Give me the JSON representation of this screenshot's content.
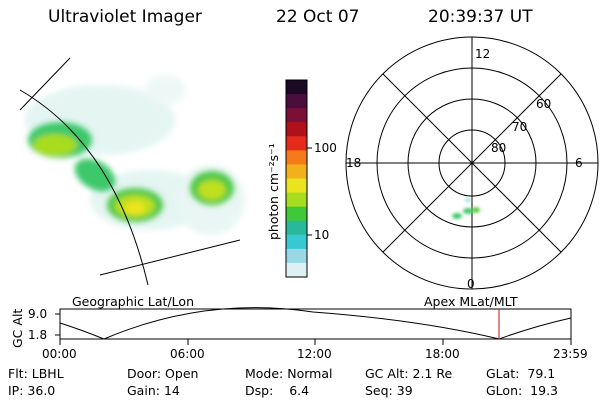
{
  "header": {
    "instrument": "Ultraviolet Imager",
    "date": "22 Oct 07",
    "time": "20:39:37 UT"
  },
  "colorbar": {
    "label": "photon cm⁻²s⁻¹",
    "ticks": [
      "100",
      "10"
    ],
    "colors": [
      "#1a0a26",
      "#4a0d3c",
      "#7a1038",
      "#b0101a",
      "#e42a1a",
      "#f47a1a",
      "#f2b01a",
      "#e9e41e",
      "#a8dc1e",
      "#3ec83a",
      "#2ab89a",
      "#38c8d4",
      "#9ad8e6",
      "#dff0f2"
    ]
  },
  "polar": {
    "mlt_labels": [
      "12",
      "18",
      "6",
      "0"
    ],
    "lat_labels": [
      "60",
      "70",
      "80"
    ]
  },
  "orbit": {
    "left_title": "Geographic Lat/Lon",
    "right_title": "Apex MLat/MLT",
    "y_axis": "GC Alt",
    "y_ticks": [
      "9.0",
      "1.8"
    ],
    "x_ticks": [
      "00:00",
      "06:00",
      "12:00",
      "18:00",
      "23:59"
    ],
    "marker_color": "#c0392b"
  },
  "info": {
    "row1": [
      {
        "k": "Flt:",
        "v": "LBHL"
      },
      {
        "k": "Door:",
        "v": "Open"
      },
      {
        "k": "Mode:",
        "v": "Normal"
      },
      {
        "k": "GC Alt:",
        "v": "2.1 Re"
      },
      {
        "k": "GLat:",
        "v": "79.1"
      }
    ],
    "row2": [
      {
        "k": "IP:",
        "v": "36.0"
      },
      {
        "k": "Gain:",
        "v": "14"
      },
      {
        "k": "Dsp:",
        "v": "6.4"
      },
      {
        "k": "Seq:",
        "v": "39"
      },
      {
        "k": "GLon:",
        "v": "19.3"
      }
    ]
  }
}
